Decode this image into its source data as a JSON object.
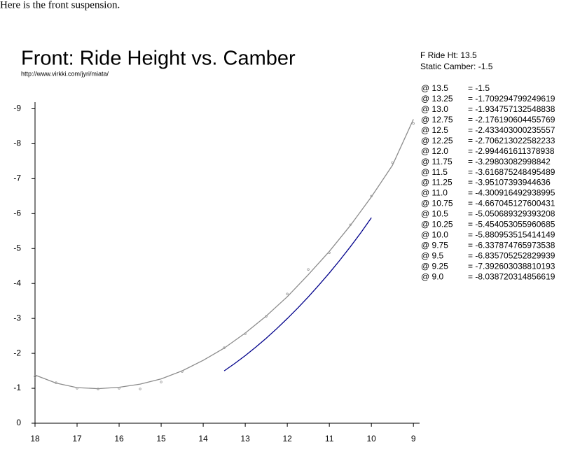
{
  "intro": "Here is the front suspension.",
  "chart_data": {
    "type": "line",
    "title": "Front: Ride Height vs. Camber",
    "subtitle": "http://www.virkki.com/jyri/miata/",
    "annotations": [
      "F Ride Ht: 13.5",
      "Static Camber: -1.5"
    ],
    "xlim": [
      18,
      8.87
    ],
    "ylim": [
      0,
      -9.15
    ],
    "xticks": [
      18,
      17,
      16,
      15,
      14,
      13,
      12,
      11,
      10,
      9
    ],
    "yticks": [
      0,
      -1,
      -2,
      -3,
      -4,
      -5,
      -6,
      -7,
      -8,
      -9
    ],
    "series": [
      {
        "type": "line",
        "color": "#8c8c8c",
        "x": [
          18,
          17.5,
          17,
          16.5,
          16,
          15.5,
          15,
          14.5,
          14,
          13.5,
          13,
          12.5,
          12,
          11.5,
          11,
          10.5,
          10,
          9.5,
          9
        ],
        "values": [
          -1.38,
          -1.15,
          -1.02,
          -0.99,
          -1.03,
          -1.12,
          -1.27,
          -1.5,
          -1.8,
          -2.15,
          -2.58,
          -3.07,
          -3.62,
          -4.25,
          -4.92,
          -5.66,
          -6.48,
          -7.38,
          -8.7
        ]
      },
      {
        "type": "scatter",
        "color": "#999999",
        "x": [
          18,
          17.5,
          17,
          16.5,
          16,
          15.5,
          15,
          14.5,
          13.5,
          13,
          12.5,
          12,
          11.5,
          11,
          10.5,
          10,
          9.5,
          9
        ],
        "values": [
          -1.34,
          -1.16,
          -1.0,
          -0.98,
          -1.0,
          -0.98,
          -1.18,
          -1.48,
          -2.16,
          -2.56,
          -3.06,
          -3.7,
          -4.4,
          -4.88,
          -5.68,
          -6.5,
          -7.46,
          -8.58
        ]
      },
      {
        "type": "line",
        "color": "#00008b",
        "x": [
          13.5,
          13.25,
          13,
          12.75,
          12.5,
          12.25,
          12,
          11.75,
          11.5,
          11.25,
          11,
          10.75,
          10.5,
          10.25,
          10
        ],
        "values": [
          -1.5,
          -1.709294799249619,
          -1.934757132548838,
          -2.176190604455769,
          -2.433403000235557,
          -2.706213022582233,
          -2.994461611378938,
          -3.29803082998842,
          -3.616875248495489,
          -3.95107393944636,
          -4.300916492938995,
          -4.667045127600431,
          -5.050689329393208,
          -5.454053055960685,
          -5.880953515414149
        ]
      }
    ]
  },
  "table": {
    "rows": [
      [
        "@ 13.5",
        "= -1.5"
      ],
      [
        "@ 13.25",
        "= -1.709294799249619"
      ],
      [
        "@ 13.0",
        "= -1.934757132548838"
      ],
      [
        "@ 12.75",
        "= -2.176190604455769"
      ],
      [
        "@ 12.5",
        "= -2.433403000235557"
      ],
      [
        "@ 12.25",
        "= -2.706213022582233"
      ],
      [
        "@ 12.0",
        "= -2.994461611378938"
      ],
      [
        "@ 11.75",
        "= -3.29803082998842"
      ],
      [
        "@ 11.5",
        "= -3.616875248495489"
      ],
      [
        "@ 11.25",
        "= -3.95107393944636"
      ],
      [
        "@ 11.0",
        "= -4.300916492938995"
      ],
      [
        "@ 10.75",
        "= -4.667045127600431"
      ],
      [
        "@ 10.5",
        "= -5.050689329393208"
      ],
      [
        "@ 10.25",
        "= -5.454053055960685"
      ],
      [
        "@ 10.0",
        "= -5.880953515414149"
      ],
      [
        "@ 9.75",
        "= -6.337874765973538"
      ],
      [
        "@ 9.5",
        "= -6.835705252829939"
      ],
      [
        "@ 9.25",
        "= -7.392603038810193"
      ],
      [
        "@ 9.0",
        "= -8.038720314856619"
      ]
    ]
  }
}
